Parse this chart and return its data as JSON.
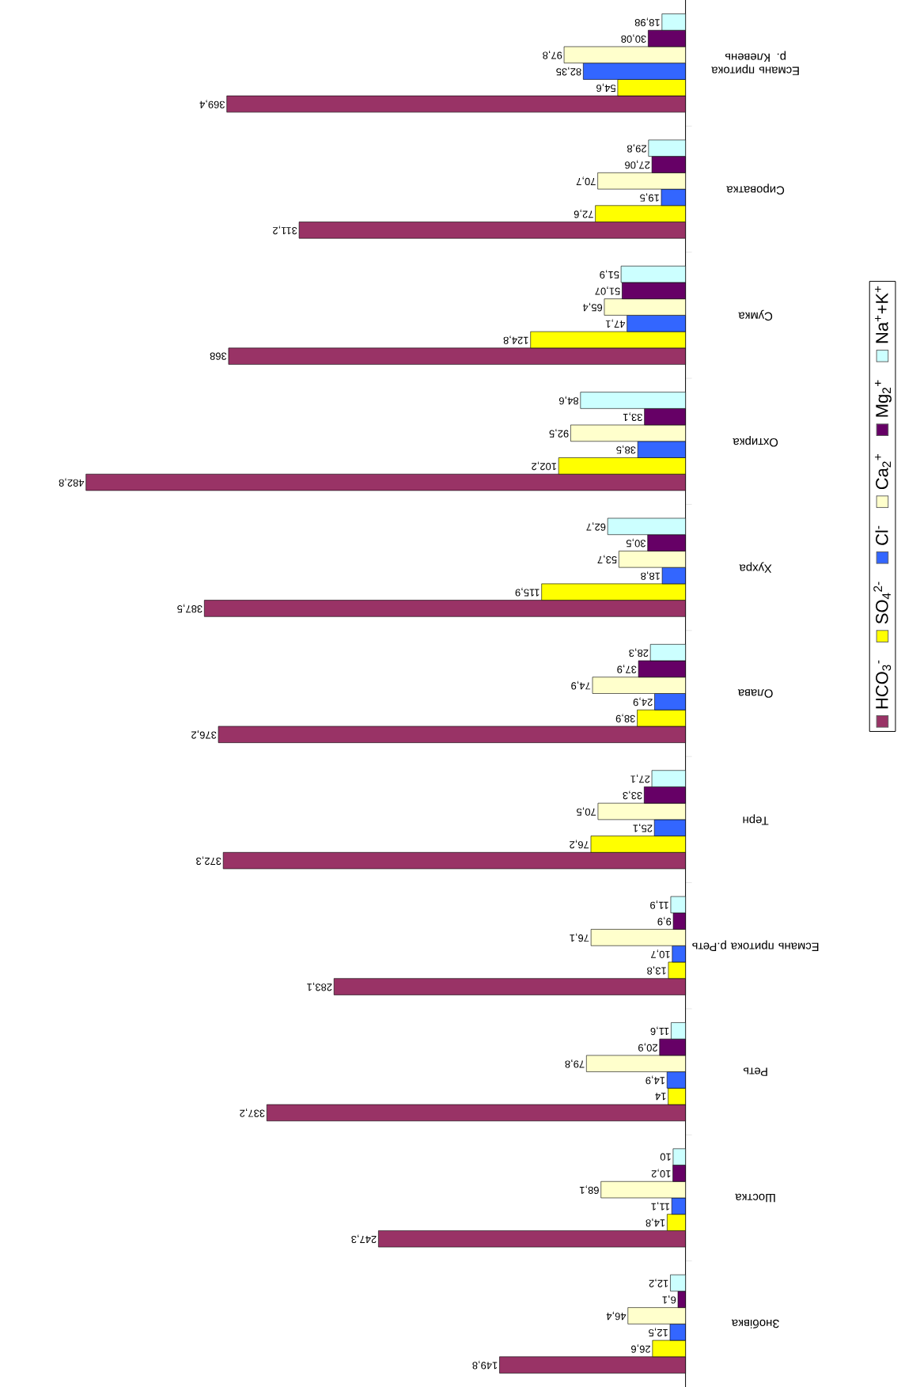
{
  "chart_data": {
    "type": "bar",
    "orientation": "horizontal",
    "legend": "right",
    "categories": [
      "Есмань притока р. Клевень",
      "Сироватка",
      "Сумка",
      "Охтирка",
      "Хухра",
      "Олава",
      "Терн",
      "Есмань притока р.Реть",
      "Реть",
      "Шостка",
      "Знобівка"
    ],
    "series": [
      {
        "name": "HCO$_{3}$$^{-}$",
        "color": "#993366",
        "values": [
          369.4,
          311.2,
          368,
          482.8,
          387.5,
          376.2,
          372.3,
          283.1,
          337.2,
          247.3,
          149.8
        ],
        "value_labels": [
          "369,4",
          "311,2",
          "368",
          "482,8",
          "387,5",
          "376,2",
          "372,3",
          "283,1",
          "337,2",
          "247,3",
          "149,8"
        ]
      },
      {
        "name": "SO$_{4}$$^{2-}$",
        "color": "#ffff00",
        "values": [
          54.6,
          72.6,
          124.8,
          102.2,
          115.9,
          38.9,
          76.2,
          13.8,
          14,
          14.8,
          26.6
        ],
        "value_labels": [
          "54,6",
          "72,6",
          "124,8",
          "102,2",
          "115,9",
          "38,9",
          "76,2",
          "13,8",
          "14",
          "14,8",
          "26,6"
        ]
      },
      {
        "name": "Cl$^{-}$",
        "color": "#3366ff",
        "values": [
          82.35,
          19.5,
          47.1,
          38.5,
          18.8,
          24.9,
          25.1,
          10.7,
          14.9,
          11.1,
          12.5
        ],
        "value_labels": [
          "82,35",
          "19,5",
          "47,1",
          "38,5",
          "18,8",
          "24,9",
          "25,1",
          "10,7",
          "14,9",
          "11,1",
          "12,5"
        ]
      },
      {
        "name": "Ca$_{2}$$^{+}$",
        "color": "#ffffcc",
        "values": [
          97.8,
          70.7,
          65.4,
          92.5,
          53.7,
          74.9,
          70.5,
          76.1,
          79.8,
          68.1,
          46.4
        ],
        "value_labels": [
          "97,8",
          "70,7",
          "65,4",
          "92,5",
          "53,7",
          "74,9",
          "70,5",
          "76,1",
          "79,8",
          "68,1",
          "46,4"
        ]
      },
      {
        "name": "Mg$_{2}$$^{+}$",
        "color": "#660066",
        "values": [
          30.08,
          27.06,
          51.07,
          33.1,
          30.5,
          37.9,
          33.3,
          9.9,
          20.9,
          10.2,
          6.1
        ],
        "value_labels": [
          "30,08",
          "27,06",
          "51,07",
          "33,1",
          "30,5",
          "37,9",
          "33,3",
          "9,9",
          "20,9",
          "10,2",
          "6,1"
        ]
      },
      {
        "name": "Na$^{+}$+K$^{+}$",
        "color": "#ccffff",
        "values": [
          18.98,
          29.8,
          51.9,
          84.6,
          62.7,
          28.3,
          27.1,
          11.9,
          11.6,
          10,
          12.2
        ],
        "value_labels": [
          "18,98",
          "29,8",
          "51,9",
          "84,6",
          "62,7",
          "28,3",
          "27,1",
          "11,9",
          "11,6",
          "10",
          "12,2"
        ]
      }
    ]
  }
}
